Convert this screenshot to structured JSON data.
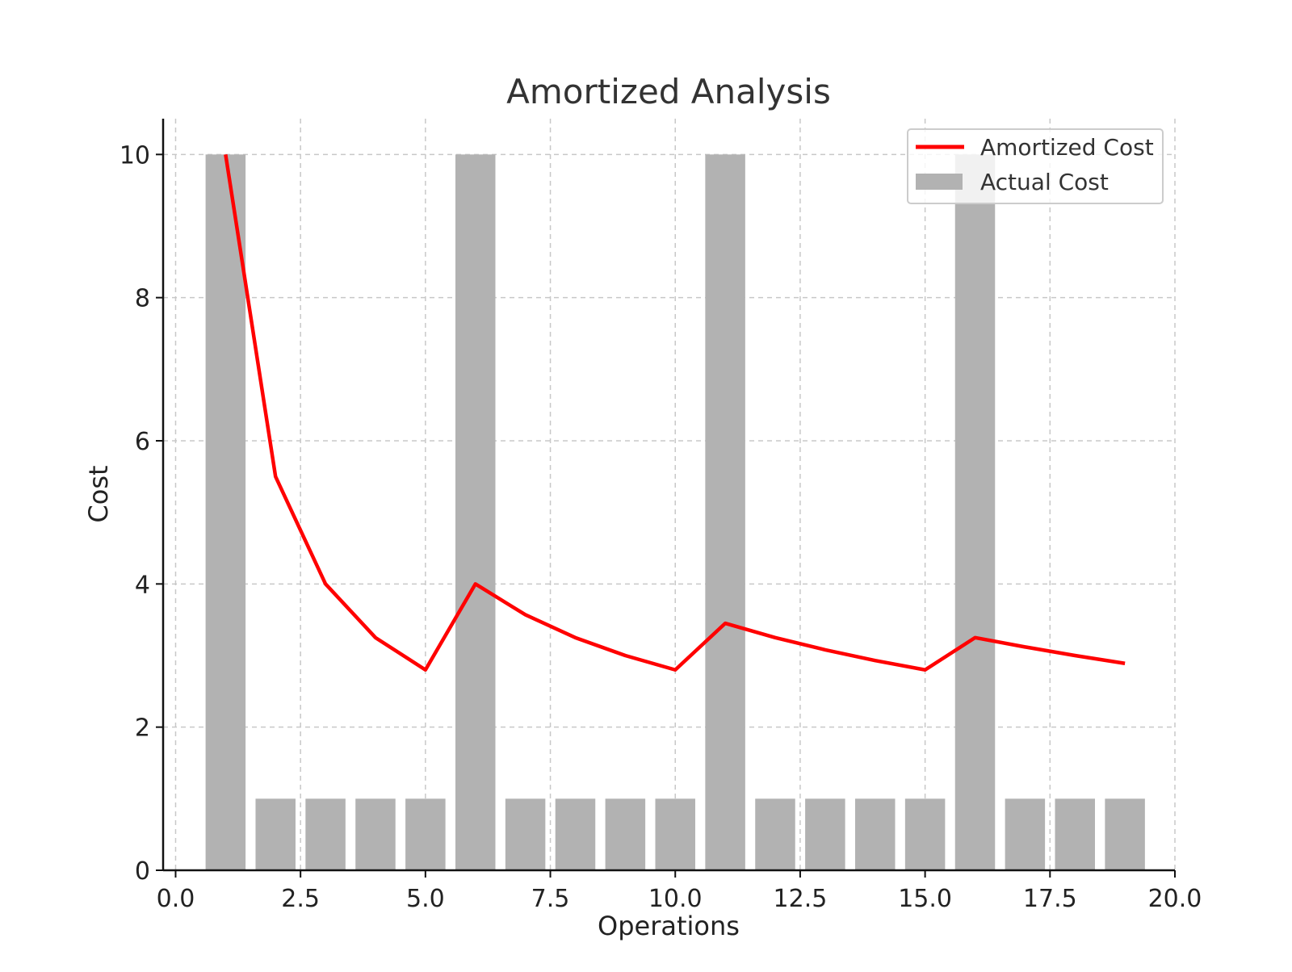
{
  "chart_data": {
    "type": "bar",
    "title": "Amortized Analysis",
    "xlabel": "Operations",
    "ylabel": "Cost",
    "xlim": [
      -0.25,
      20.0
    ],
    "ylim": [
      0,
      10.5
    ],
    "x_ticks": [
      "0.0",
      "2.5",
      "5.0",
      "7.5",
      "10.0",
      "12.5",
      "15.0",
      "17.5",
      "20.0"
    ],
    "y_ticks": [
      "0",
      "2",
      "4",
      "6",
      "8",
      "10"
    ],
    "grid": true,
    "legend_position": "top-right",
    "legend": [
      {
        "label": "Amortized Cost",
        "kind": "line",
        "color": "#ff0000"
      },
      {
        "label": "Actual Cost",
        "kind": "bar",
        "color": "#b2b2b2"
      }
    ],
    "x": [
      1,
      2,
      3,
      4,
      5,
      6,
      7,
      8,
      9,
      10,
      11,
      12,
      13,
      14,
      15,
      16,
      17,
      18,
      19
    ],
    "series": [
      {
        "name": "Actual Cost",
        "type": "bar",
        "color": "#b2b2b2",
        "values": [
          10,
          1,
          1,
          1,
          1,
          10,
          1,
          1,
          1,
          1,
          10,
          1,
          1,
          1,
          1,
          10,
          1,
          1,
          1
        ]
      },
      {
        "name": "Amortized Cost",
        "type": "line",
        "color": "#ff0000",
        "values": [
          10.0,
          5.5,
          4.0,
          3.25,
          2.8,
          4.0,
          3.57,
          3.25,
          3.0,
          2.8,
          3.45,
          3.25,
          3.08,
          2.93,
          2.8,
          3.25,
          3.12,
          3.0,
          2.89
        ]
      }
    ]
  }
}
